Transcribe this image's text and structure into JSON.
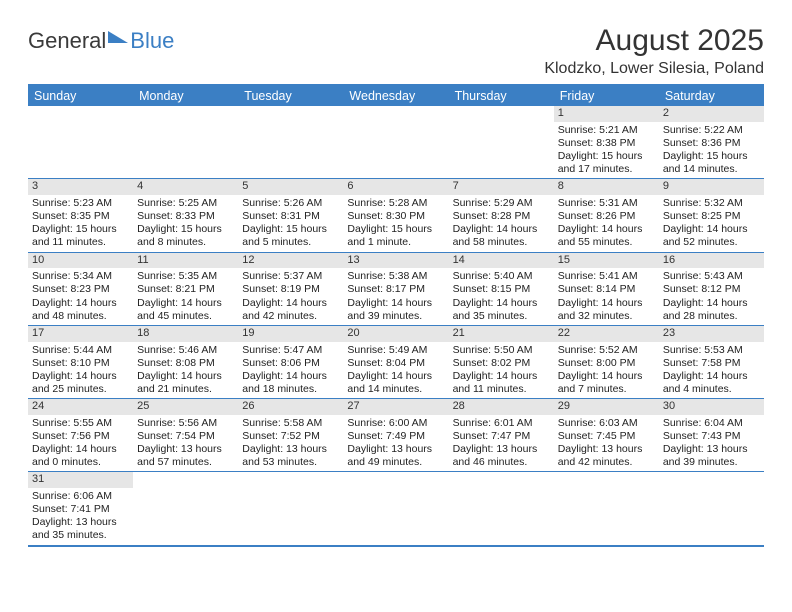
{
  "logo": {
    "text1": "General",
    "text2": "Blue"
  },
  "title": "August 2025",
  "location": "Klodzko, Lower Silesia, Poland",
  "day_headers": [
    "Sunday",
    "Monday",
    "Tuesday",
    "Wednesday",
    "Thursday",
    "Friday",
    "Saturday"
  ],
  "colors": {
    "accent": "#3b7fc4",
    "header_bg": "#e6e6e6",
    "text": "#333333",
    "background": "#ffffff"
  },
  "typography": {
    "title_fontsize": 30,
    "location_fontsize": 16,
    "dayheader_fontsize": 12.5,
    "cell_fontsize": 10.5
  },
  "weeks": [
    [
      {
        "day": "",
        "lines": [
          "",
          "",
          "",
          ""
        ]
      },
      {
        "day": "",
        "lines": [
          "",
          "",
          "",
          ""
        ]
      },
      {
        "day": "",
        "lines": [
          "",
          "",
          "",
          ""
        ]
      },
      {
        "day": "",
        "lines": [
          "",
          "",
          "",
          ""
        ]
      },
      {
        "day": "",
        "lines": [
          "",
          "",
          "",
          ""
        ]
      },
      {
        "day": "1",
        "lines": [
          "Sunrise: 5:21 AM",
          "Sunset: 8:38 PM",
          "Daylight: 15 hours",
          "and 17 minutes."
        ]
      },
      {
        "day": "2",
        "lines": [
          "Sunrise: 5:22 AM",
          "Sunset: 8:36 PM",
          "Daylight: 15 hours",
          "and 14 minutes."
        ]
      }
    ],
    [
      {
        "day": "3",
        "lines": [
          "Sunrise: 5:23 AM",
          "Sunset: 8:35 PM",
          "Daylight: 15 hours",
          "and 11 minutes."
        ]
      },
      {
        "day": "4",
        "lines": [
          "Sunrise: 5:25 AM",
          "Sunset: 8:33 PM",
          "Daylight: 15 hours",
          "and 8 minutes."
        ]
      },
      {
        "day": "5",
        "lines": [
          "Sunrise: 5:26 AM",
          "Sunset: 8:31 PM",
          "Daylight: 15 hours",
          "and 5 minutes."
        ]
      },
      {
        "day": "6",
        "lines": [
          "Sunrise: 5:28 AM",
          "Sunset: 8:30 PM",
          "Daylight: 15 hours",
          "and 1 minute."
        ]
      },
      {
        "day": "7",
        "lines": [
          "Sunrise: 5:29 AM",
          "Sunset: 8:28 PM",
          "Daylight: 14 hours",
          "and 58 minutes."
        ]
      },
      {
        "day": "8",
        "lines": [
          "Sunrise: 5:31 AM",
          "Sunset: 8:26 PM",
          "Daylight: 14 hours",
          "and 55 minutes."
        ]
      },
      {
        "day": "9",
        "lines": [
          "Sunrise: 5:32 AM",
          "Sunset: 8:25 PM",
          "Daylight: 14 hours",
          "and 52 minutes."
        ]
      }
    ],
    [
      {
        "day": "10",
        "lines": [
          "Sunrise: 5:34 AM",
          "Sunset: 8:23 PM",
          "Daylight: 14 hours",
          "and 48 minutes."
        ]
      },
      {
        "day": "11",
        "lines": [
          "Sunrise: 5:35 AM",
          "Sunset: 8:21 PM",
          "Daylight: 14 hours",
          "and 45 minutes."
        ]
      },
      {
        "day": "12",
        "lines": [
          "Sunrise: 5:37 AM",
          "Sunset: 8:19 PM",
          "Daylight: 14 hours",
          "and 42 minutes."
        ]
      },
      {
        "day": "13",
        "lines": [
          "Sunrise: 5:38 AM",
          "Sunset: 8:17 PM",
          "Daylight: 14 hours",
          "and 39 minutes."
        ]
      },
      {
        "day": "14",
        "lines": [
          "Sunrise: 5:40 AM",
          "Sunset: 8:15 PM",
          "Daylight: 14 hours",
          "and 35 minutes."
        ]
      },
      {
        "day": "15",
        "lines": [
          "Sunrise: 5:41 AM",
          "Sunset: 8:14 PM",
          "Daylight: 14 hours",
          "and 32 minutes."
        ]
      },
      {
        "day": "16",
        "lines": [
          "Sunrise: 5:43 AM",
          "Sunset: 8:12 PM",
          "Daylight: 14 hours",
          "and 28 minutes."
        ]
      }
    ],
    [
      {
        "day": "17",
        "lines": [
          "Sunrise: 5:44 AM",
          "Sunset: 8:10 PM",
          "Daylight: 14 hours",
          "and 25 minutes."
        ]
      },
      {
        "day": "18",
        "lines": [
          "Sunrise: 5:46 AM",
          "Sunset: 8:08 PM",
          "Daylight: 14 hours",
          "and 21 minutes."
        ]
      },
      {
        "day": "19",
        "lines": [
          "Sunrise: 5:47 AM",
          "Sunset: 8:06 PM",
          "Daylight: 14 hours",
          "and 18 minutes."
        ]
      },
      {
        "day": "20",
        "lines": [
          "Sunrise: 5:49 AM",
          "Sunset: 8:04 PM",
          "Daylight: 14 hours",
          "and 14 minutes."
        ]
      },
      {
        "day": "21",
        "lines": [
          "Sunrise: 5:50 AM",
          "Sunset: 8:02 PM",
          "Daylight: 14 hours",
          "and 11 minutes."
        ]
      },
      {
        "day": "22",
        "lines": [
          "Sunrise: 5:52 AM",
          "Sunset: 8:00 PM",
          "Daylight: 14 hours",
          "and 7 minutes."
        ]
      },
      {
        "day": "23",
        "lines": [
          "Sunrise: 5:53 AM",
          "Sunset: 7:58 PM",
          "Daylight: 14 hours",
          "and 4 minutes."
        ]
      }
    ],
    [
      {
        "day": "24",
        "lines": [
          "Sunrise: 5:55 AM",
          "Sunset: 7:56 PM",
          "Daylight: 14 hours",
          "and 0 minutes."
        ]
      },
      {
        "day": "25",
        "lines": [
          "Sunrise: 5:56 AM",
          "Sunset: 7:54 PM",
          "Daylight: 13 hours",
          "and 57 minutes."
        ]
      },
      {
        "day": "26",
        "lines": [
          "Sunrise: 5:58 AM",
          "Sunset: 7:52 PM",
          "Daylight: 13 hours",
          "and 53 minutes."
        ]
      },
      {
        "day": "27",
        "lines": [
          "Sunrise: 6:00 AM",
          "Sunset: 7:49 PM",
          "Daylight: 13 hours",
          "and 49 minutes."
        ]
      },
      {
        "day": "28",
        "lines": [
          "Sunrise: 6:01 AM",
          "Sunset: 7:47 PM",
          "Daylight: 13 hours",
          "and 46 minutes."
        ]
      },
      {
        "day": "29",
        "lines": [
          "Sunrise: 6:03 AM",
          "Sunset: 7:45 PM",
          "Daylight: 13 hours",
          "and 42 minutes."
        ]
      },
      {
        "day": "30",
        "lines": [
          "Sunrise: 6:04 AM",
          "Sunset: 7:43 PM",
          "Daylight: 13 hours",
          "and 39 minutes."
        ]
      }
    ],
    [
      {
        "day": "31",
        "lines": [
          "Sunrise: 6:06 AM",
          "Sunset: 7:41 PM",
          "Daylight: 13 hours",
          "and 35 minutes."
        ]
      },
      {
        "day": "",
        "lines": [
          "",
          "",
          "",
          ""
        ]
      },
      {
        "day": "",
        "lines": [
          "",
          "",
          "",
          ""
        ]
      },
      {
        "day": "",
        "lines": [
          "",
          "",
          "",
          ""
        ]
      },
      {
        "day": "",
        "lines": [
          "",
          "",
          "",
          ""
        ]
      },
      {
        "day": "",
        "lines": [
          "",
          "",
          "",
          ""
        ]
      },
      {
        "day": "",
        "lines": [
          "",
          "",
          "",
          ""
        ]
      }
    ]
  ]
}
